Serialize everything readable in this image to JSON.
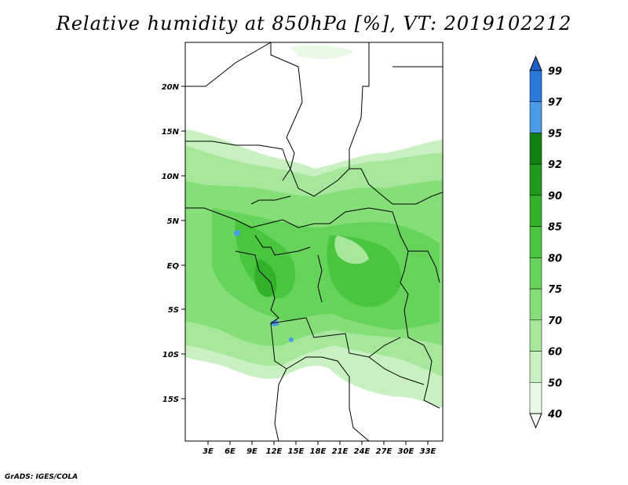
{
  "title": "Relative humidity at 850hPa [%], VT: 2019102212",
  "credit": "GrADS: IGES/COLA",
  "lat_labels": [
    "20N",
    "15N",
    "10N",
    "5N",
    "EQ",
    "5S",
    "10S",
    "15S"
  ],
  "lon_labels": [
    "3E",
    "6E",
    "9E",
    "12E",
    "15E",
    "18E",
    "21E",
    "24E",
    "27E",
    "30E",
    "33E"
  ],
  "colorbar": {
    "levels": [
      "40",
      "50",
      "60",
      "70",
      "75",
      "80",
      "85",
      "90",
      "92",
      "95",
      "97",
      "99"
    ],
    "colors": [
      "#ffffff",
      "#e8f9e4",
      "#c8f0c0",
      "#a6e79b",
      "#85de78",
      "#66d35a",
      "#49c63e",
      "#32b22a",
      "#1f9a1d",
      "#128012",
      "#4b9be6",
      "#2a78d8",
      "#1f5fc8"
    ]
  }
}
